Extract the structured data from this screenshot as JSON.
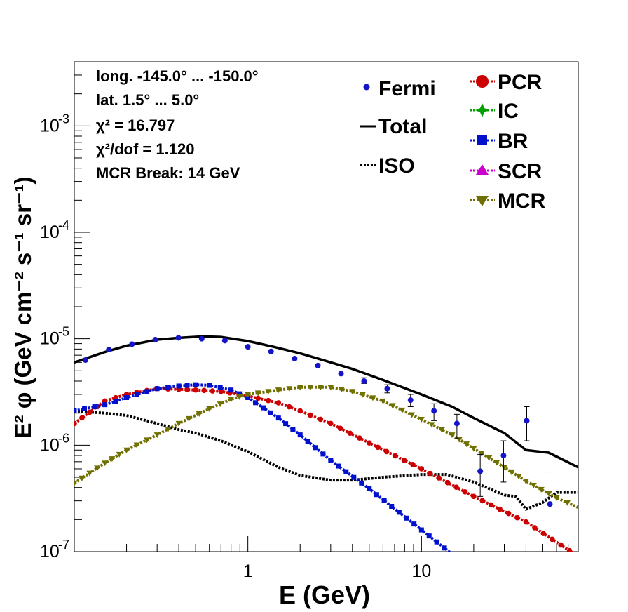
{
  "chart_data": {
    "type": "line",
    "xlabel": "E (GeV)",
    "ylabel": "E² φ (GeV cm⁻² s⁻¹ sr⁻¹)",
    "x_scale": "log",
    "y_scale": "log",
    "xlim": [
      0.1,
      80
    ],
    "ylim": [
      1e-07,
      0.004
    ],
    "x_tick_labels": [
      {
        "value": 1,
        "label": "1"
      },
      {
        "value": 10,
        "label": "10"
      }
    ],
    "y_tick_labels": [
      {
        "value": 1e-07,
        "base": "10",
        "exp": "-7"
      },
      {
        "value": 1e-06,
        "base": "10",
        "exp": "-6"
      },
      {
        "value": 1e-05,
        "base": "10",
        "exp": "-5"
      },
      {
        "value": 0.0001,
        "base": "10",
        "exp": "-4"
      },
      {
        "value": 0.001,
        "base": "10",
        "exp": "-3"
      }
    ],
    "annotations": [
      "long. -145.0° ... -150.0°",
      "lat. 1.5° ... 5.0°",
      "χ² = 16.797",
      "χ²/dof = 1.120",
      "MCR Break: 14 GeV"
    ],
    "legend_placement": "top-right",
    "legend": [
      {
        "name": "Fermi",
        "color": "#1414c8",
        "style": "points"
      },
      {
        "name": "Total",
        "color": "#000000",
        "style": "line"
      },
      {
        "name": "ISO",
        "color": "#000000",
        "style": "dotted"
      },
      {
        "name": "PCR",
        "color": "#cc0000",
        "style": "dotted-circle"
      },
      {
        "name": "IC",
        "color": "#00a000",
        "style": "dotted-star"
      },
      {
        "name": "BR",
        "color": "#0010cc",
        "style": "dotted-square"
      },
      {
        "name": "SCR",
        "color": "#cc00cc",
        "style": "dotted-triangle"
      },
      {
        "name": "MCR",
        "color": "#707000",
        "style": "dotted-triangle-down"
      }
    ],
    "fermi": {
      "name": "Fermi",
      "color": "#1414c8",
      "points": [
        {
          "x": 0.116,
          "y": 6.3e-06
        },
        {
          "x": 0.158,
          "y": 7.9e-06
        },
        {
          "x": 0.215,
          "y": 8.9e-06
        },
        {
          "x": 0.293,
          "y": 9.8e-06
        },
        {
          "x": 0.398,
          "y": 1.02e-05
        },
        {
          "x": 0.542,
          "y": 1e-05
        },
        {
          "x": 0.737,
          "y": 9.6e-06
        },
        {
          "x": 1.0,
          "y": 8.4e-06
        },
        {
          "x": 1.36,
          "y": 7.6e-06
        },
        {
          "x": 1.86,
          "y": 6.5e-06
        },
        {
          "x": 2.53,
          "y": 5.6e-06
        },
        {
          "x": 3.44,
          "y": 4.7e-06
        },
        {
          "x": 4.67,
          "y": 4e-06,
          "elo": 3.8e-06,
          "ehi": 4.3e-06
        },
        {
          "x": 6.35,
          "y": 3.4e-06,
          "elo": 3.1e-06,
          "ehi": 3.7e-06
        },
        {
          "x": 8.65,
          "y": 2.65e-06,
          "elo": 2.3e-06,
          "ehi": 3e-06
        },
        {
          "x": 11.8,
          "y": 2.1e-06,
          "elo": 1.7e-06,
          "ehi": 2.45e-06
        },
        {
          "x": 16.0,
          "y": 1.6e-06,
          "elo": 1.15e-06,
          "ehi": 1.95e-06
        },
        {
          "x": 21.8,
          "y": 5.7e-07,
          "elo": 3.3e-07,
          "ehi": 8.2e-07
        },
        {
          "x": 29.7,
          "y": 8e-07,
          "elo": 4.5e-07,
          "ehi": 1.1e-06
        },
        {
          "x": 40.4,
          "y": 1.7e-06,
          "elo": 1.1e-06,
          "ehi": 2.3e-06
        },
        {
          "x": 54.9,
          "y": 2.8e-07,
          "elo": 1e-07,
          "ehi": 5.6e-07
        }
      ]
    },
    "total": {
      "name": "Total",
      "color": "#000000",
      "x": [
        0.1,
        0.15,
        0.2,
        0.3,
        0.4,
        0.55,
        0.7,
        1.0,
        1.4,
        2.0,
        3.0,
        4.0,
        6.0,
        10.0,
        15.0,
        20.0,
        30.0,
        40.0,
        54.0,
        80.0
      ],
      "y": [
        6e-06,
        7.5e-06,
        8.6e-06,
        9.8e-06,
        1.02e-05,
        1.05e-05,
        1.04e-05,
        9.5e-06,
        8.4e-06,
        7.3e-06,
        6e-06,
        5.2e-06,
        4.1e-06,
        3e-06,
        2.3e-06,
        1.8e-06,
        1.3e-06,
        9e-07,
        8.5e-07,
        6.2e-07
      ]
    },
    "series": [
      {
        "name": "ISO",
        "color": "#000000",
        "marker": "none",
        "x": [
          0.1,
          0.15,
          0.2,
          0.3,
          0.4,
          0.5,
          0.7,
          1.0,
          1.5,
          2.0,
          3.0,
          4.0,
          6.0,
          10.0,
          14.0,
          20.0,
          30.0,
          35.0,
          40.0,
          50.0,
          60.0,
          80.0
        ],
        "y": [
          2.1e-06,
          2e-06,
          1.9e-06,
          1.6e-06,
          1.4e-06,
          1.3e-06,
          1.1e-06,
          8.7e-07,
          6.2e-07,
          5.2e-07,
          4.7e-07,
          4.7e-07,
          5e-07,
          5.3e-07,
          5.3e-07,
          4.5e-07,
          3.4e-07,
          3.3e-07,
          2.5e-07,
          2.9e-07,
          3.6e-07,
          3.6e-07
        ]
      },
      {
        "name": "PCR",
        "color": "#cc0000",
        "marker": "circle",
        "x": [
          0.1,
          0.15,
          0.2,
          0.3,
          0.4,
          0.5,
          0.7,
          1.0,
          1.5,
          2.0,
          3.0,
          5.0,
          10.0,
          20.0,
          40.0,
          80.0
        ],
        "y": [
          1.6e-06,
          2.6e-06,
          3e-06,
          3.4e-06,
          3.35e-06,
          3.3e-06,
          3.2e-06,
          2.9e-06,
          2.5e-06,
          2.1e-06,
          1.6e-06,
          1.05e-06,
          6e-07,
          3.3e-07,
          1.9e-07,
          9e-08
        ]
      },
      {
        "name": "BR",
        "color": "#0010cc",
        "marker": "square",
        "x": [
          0.1,
          0.15,
          0.2,
          0.3,
          0.4,
          0.5,
          0.6,
          0.8,
          1.0,
          1.5,
          2.0,
          3.0,
          5.0,
          10.0,
          15.0,
          20.0
        ],
        "y": [
          2.1e-06,
          2.4e-06,
          2.8e-06,
          3.4e-06,
          3.6e-06,
          3.7e-06,
          3.65e-06,
          3.3e-06,
          2.8e-06,
          1.8e-06,
          1.25e-06,
          7.2e-07,
          3.9e-07,
          1.6e-07,
          9.5e-08,
          7e-08
        ]
      },
      {
        "name": "MCR",
        "color": "#707000",
        "marker": "triangle-down",
        "x": [
          0.1,
          0.15,
          0.2,
          0.3,
          0.4,
          0.6,
          0.8,
          1.0,
          1.5,
          2.0,
          3.0,
          4.0,
          6.0,
          10.0,
          15.0,
          20.0,
          30.0,
          40.0,
          60.0,
          80.0
        ],
        "y": [
          4.4e-07,
          6.8e-07,
          9e-07,
          1.25e-06,
          1.6e-06,
          2.2e-06,
          2.7e-06,
          3e-06,
          3.3e-06,
          3.5e-06,
          3.5e-06,
          3.2e-06,
          2.6e-06,
          1.75e-06,
          1.25e-06,
          9.3e-07,
          6.2e-07,
          4.6e-07,
          3.2e-07,
          2.6e-07
        ]
      }
    ]
  }
}
